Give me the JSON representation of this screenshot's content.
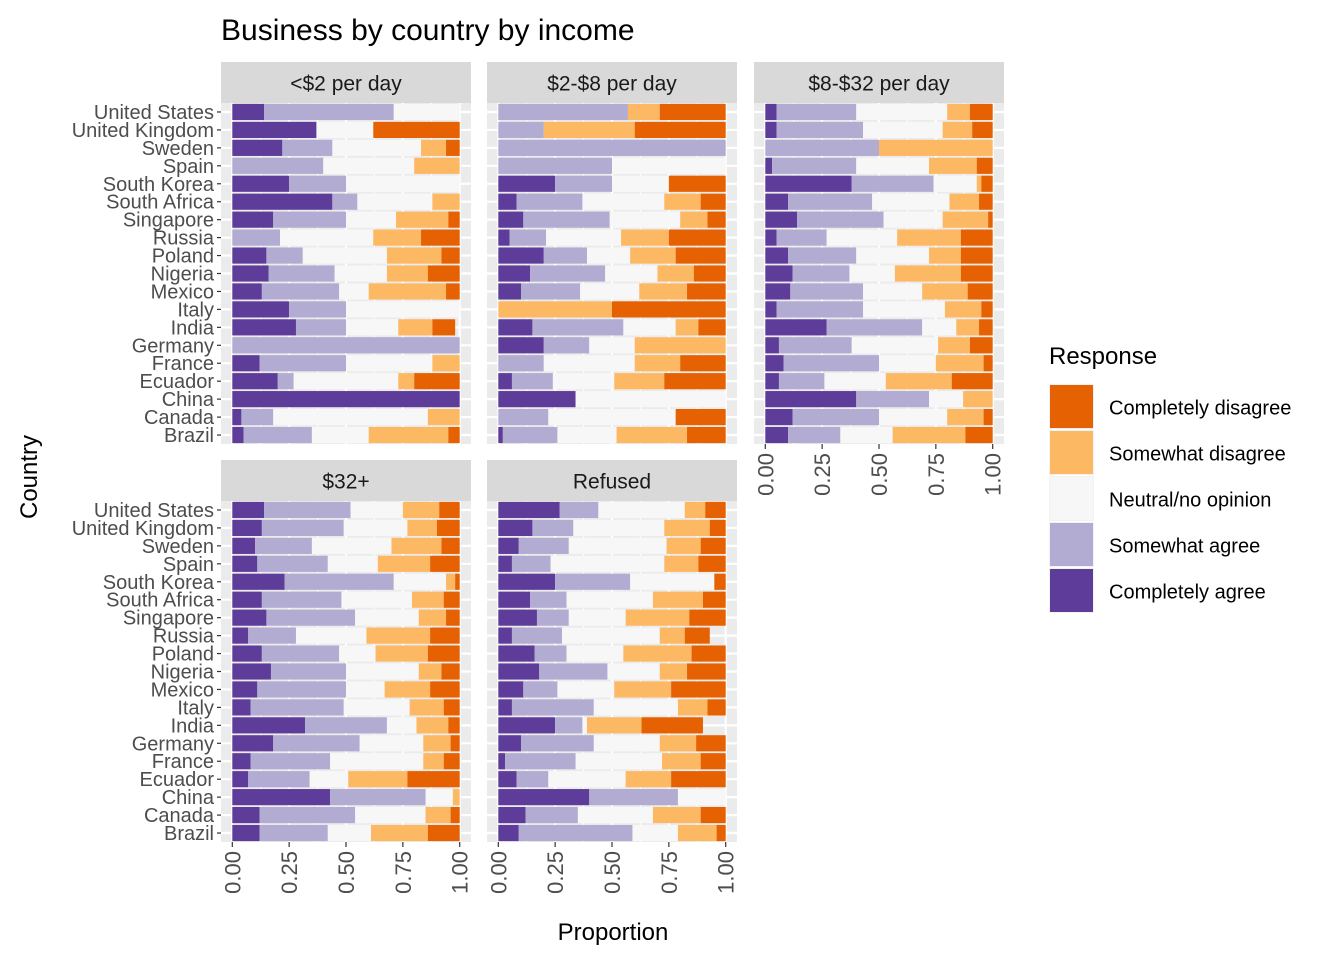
{
  "chart_data": {
    "type": "bar",
    "orientation": "horizontal",
    "stacked": true,
    "title": "Business by country by income",
    "xlabel": "Proportion",
    "ylabel": "Country",
    "xlim": [
      0,
      1
    ],
    "x_ticks": [
      "0.00",
      "0.25",
      "0.50",
      "0.75",
      "1.00"
    ],
    "grid": true,
    "legend": {
      "title": "Response",
      "position": "right",
      "entries": [
        {
          "name": "Completely disagree",
          "color": "#e66101"
        },
        {
          "name": "Somewhat disagree",
          "color": "#fdb863"
        },
        {
          "name": "Neutral/no opinion",
          "color": "#f7f7f7"
        },
        {
          "name": "Somewhat agree",
          "color": "#b2abd2"
        },
        {
          "name": "Completely agree",
          "color": "#5e3c99"
        }
      ]
    },
    "categories": [
      "United States",
      "United Kingdom",
      "Sweden",
      "Spain",
      "South Korea",
      "South Africa",
      "Singapore",
      "Russia",
      "Poland",
      "Nigeria",
      "Mexico",
      "Italy",
      "India",
      "Germany",
      "France",
      "Ecuador",
      "China",
      "Canada",
      "Brazil"
    ],
    "stack_order": [
      "Completely agree",
      "Somewhat agree",
      "Neutral/no opinion",
      "Somewhat disagree",
      "Completely disagree"
    ],
    "panels": [
      {
        "name": "<$2 per day",
        "values": [
          [
            0.14,
            0.57,
            0.29,
            0,
            0
          ],
          [
            0.37,
            0,
            0.25,
            0,
            0.38
          ],
          [
            0.22,
            0.22,
            0.39,
            0.11,
            0.06
          ],
          [
            0,
            0.4,
            0.4,
            0.2,
            0
          ],
          [
            0.25,
            0.25,
            0.5,
            0,
            0
          ],
          [
            0.44,
            0.11,
            0.33,
            0.12,
            0
          ],
          [
            0.18,
            0.32,
            0.22,
            0.23,
            0.05
          ],
          [
            0,
            0.21,
            0.41,
            0.21,
            0.17
          ],
          [
            0.15,
            0.16,
            0.37,
            0.24,
            0.08
          ],
          [
            0.16,
            0.29,
            0.23,
            0.18,
            0.14
          ],
          [
            0.13,
            0.34,
            0.13,
            0.34,
            0.06
          ],
          [
            0.25,
            0.25,
            0.5,
            0,
            0
          ],
          [
            0.28,
            0.22,
            0.23,
            0.15,
            0.1
          ],
          [
            0,
            1.0,
            0,
            0,
            0
          ],
          [
            0.12,
            0.38,
            0.38,
            0.12,
            0
          ],
          [
            0.2,
            0.07,
            0.46,
            0.07,
            0.2
          ],
          [
            1.0,
            0,
            0,
            0,
            0
          ],
          [
            0.04,
            0.14,
            0.68,
            0.23,
            0.09
          ],
          [
            0.05,
            0.3,
            0.25,
            0.35,
            0.05
          ]
        ]
      },
      {
        "name": "$2-$8 per day",
        "values": [
          [
            0,
            0.57,
            0,
            0.14,
            0.29
          ],
          [
            0,
            0.2,
            0,
            0.4,
            0.4
          ],
          [
            0,
            1.0,
            0,
            0,
            0
          ],
          [
            0,
            0.5,
            0.5,
            0,
            0
          ],
          [
            0.25,
            0.25,
            0.25,
            0,
            0.25
          ],
          [
            0.08,
            0.29,
            0.36,
            0.16,
            0.11
          ],
          [
            0.11,
            0.38,
            0.31,
            0.12,
            0.08
          ],
          [
            0.05,
            0.16,
            0.33,
            0.21,
            0.25
          ],
          [
            0.2,
            0.19,
            0.19,
            0.2,
            0.22
          ],
          [
            0.14,
            0.33,
            0.23,
            0.16,
            0.14
          ],
          [
            0.1,
            0.26,
            0.26,
            0.21,
            0.17
          ],
          [
            0,
            0,
            0,
            0.5,
            0.5
          ],
          [
            0.15,
            0.4,
            0.23,
            0.1,
            0.12
          ],
          [
            0.2,
            0.2,
            0.2,
            0.4,
            0
          ],
          [
            0,
            0.2,
            0.4,
            0.2,
            0.2
          ],
          [
            0.06,
            0.18,
            0.27,
            0.22,
            0.27
          ],
          [
            0.34,
            0,
            0.66,
            0,
            0
          ],
          [
            0,
            0.22,
            0.56,
            0,
            0.22
          ],
          [
            0.02,
            0.24,
            0.26,
            0.31,
            0.17
          ]
        ]
      },
      {
        "name": "$8-$32 per day",
        "values": [
          [
            0.05,
            0.35,
            0.4,
            0.1,
            0.1
          ],
          [
            0.05,
            0.38,
            0.35,
            0.13,
            0.09
          ],
          [
            0,
            0.5,
            0,
            0.5,
            0
          ],
          [
            0.03,
            0.37,
            0.32,
            0.21,
            0.07
          ],
          [
            0.38,
            0.36,
            0.19,
            0.02,
            0.05
          ],
          [
            0.1,
            0.37,
            0.34,
            0.13,
            0.06
          ],
          [
            0.14,
            0.38,
            0.26,
            0.2,
            0.02
          ],
          [
            0.05,
            0.22,
            0.31,
            0.28,
            0.14
          ],
          [
            0.1,
            0.3,
            0.32,
            0.14,
            0.14
          ],
          [
            0.12,
            0.25,
            0.2,
            0.29,
            0.14
          ],
          [
            0.11,
            0.32,
            0.26,
            0.2,
            0.11
          ],
          [
            0.05,
            0.38,
            0.36,
            0.16,
            0.05
          ],
          [
            0.27,
            0.42,
            0.15,
            0.1,
            0.06
          ],
          [
            0.06,
            0.32,
            0.38,
            0.14,
            0.1
          ],
          [
            0.08,
            0.42,
            0.25,
            0.21,
            0.04
          ],
          [
            0.06,
            0.2,
            0.27,
            0.29,
            0.18
          ],
          [
            0.4,
            0.32,
            0.15,
            0.13,
            0
          ],
          [
            0.12,
            0.38,
            0.3,
            0.16,
            0.04
          ],
          [
            0.1,
            0.23,
            0.23,
            0.32,
            0.12
          ]
        ]
      },
      {
        "name": "$32+",
        "values": [
          [
            0.14,
            0.38,
            0.23,
            0.16,
            0.09
          ],
          [
            0.13,
            0.36,
            0.28,
            0.13,
            0.1
          ],
          [
            0.1,
            0.25,
            0.35,
            0.22,
            0.08
          ],
          [
            0.11,
            0.31,
            0.22,
            0.23,
            0.13
          ],
          [
            0.23,
            0.48,
            0.23,
            0.04,
            0.02
          ],
          [
            0.13,
            0.35,
            0.31,
            0.14,
            0.07
          ],
          [
            0.15,
            0.39,
            0.28,
            0.12,
            0.06
          ],
          [
            0.07,
            0.21,
            0.31,
            0.28,
            0.13
          ],
          [
            0.13,
            0.34,
            0.16,
            0.23,
            0.14
          ],
          [
            0.17,
            0.33,
            0.32,
            0.1,
            0.08
          ],
          [
            0.11,
            0.39,
            0.17,
            0.2,
            0.13
          ],
          [
            0.08,
            0.41,
            0.29,
            0.15,
            0.07
          ],
          [
            0.32,
            0.36,
            0.13,
            0.14,
            0.05
          ],
          [
            0.18,
            0.38,
            0.28,
            0.12,
            0.04
          ],
          [
            0.08,
            0.35,
            0.41,
            0.09,
            0.07
          ],
          [
            0.07,
            0.27,
            0.17,
            0.26,
            0.23
          ],
          [
            0.43,
            0.42,
            0.12,
            0.03,
            0
          ],
          [
            0.12,
            0.42,
            0.31,
            0.11,
            0.04
          ],
          [
            0.12,
            0.3,
            0.19,
            0.25,
            0.14
          ]
        ]
      },
      {
        "name": "Refused",
        "values": [
          [
            0.27,
            0.17,
            0.38,
            0.09,
            0.09
          ],
          [
            0.15,
            0.18,
            0.4,
            0.2,
            0.07
          ],
          [
            0.09,
            0.22,
            0.43,
            0.15,
            0.11
          ],
          [
            0.06,
            0.17,
            0.5,
            0.15,
            0.12
          ],
          [
            0.25,
            0.33,
            0.37,
            0,
            0.05
          ],
          [
            0.14,
            0.16,
            0.38,
            0.22,
            0.1
          ],
          [
            0.17,
            0.14,
            0.25,
            0.28,
            0.16
          ],
          [
            0.06,
            0.22,
            0.43,
            0.11,
            0.11
          ],
          [
            0.16,
            0.14,
            0.25,
            0.3,
            0.15
          ],
          [
            0.18,
            0.3,
            0.23,
            0.12,
            0.17
          ],
          [
            0.11,
            0.15,
            0.25,
            0.25,
            0.24
          ],
          [
            0.06,
            0.36,
            0.37,
            0.13,
            0.08
          ],
          [
            0.25,
            0.12,
            0.02,
            0.24,
            0.27
          ],
          [
            0.1,
            0.32,
            0.29,
            0.16,
            0.13
          ],
          [
            0.03,
            0.31,
            0.38,
            0.17,
            0.11
          ],
          [
            0.08,
            0.14,
            0.34,
            0.2,
            0.24
          ],
          [
            0.4,
            0.39,
            0.21,
            0,
            0
          ],
          [
            0.12,
            0.23,
            0.33,
            0.21,
            0.11
          ],
          [
            0.09,
            0.5,
            0.2,
            0.17,
            0.04
          ]
        ]
      }
    ]
  }
}
